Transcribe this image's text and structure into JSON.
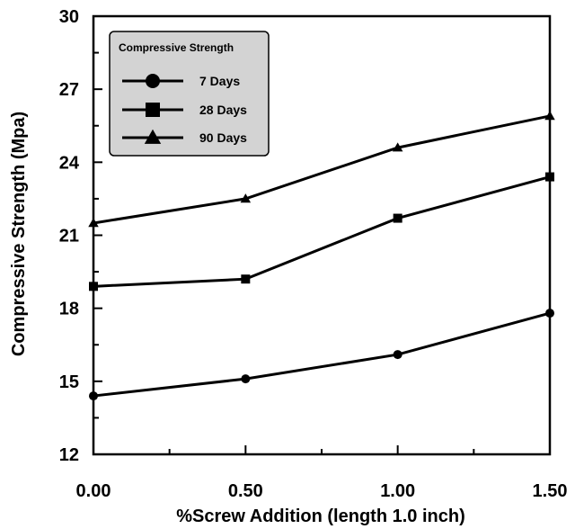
{
  "chart_data": {
    "type": "line",
    "xlabel": "%Screw Addition (length 1.0 inch)",
    "ylabel": "Compressive Strength (Mpa)",
    "xlim": [
      0,
      1.5
    ],
    "ylim": [
      12,
      30
    ],
    "x_ticks": [
      "0.00",
      "0.50",
      "1.00",
      "1.50"
    ],
    "y_ticks": [
      "12",
      "15",
      "18",
      "21",
      "24",
      "27",
      "30"
    ],
    "x": [
      0,
      0.5,
      1.0,
      1.5
    ],
    "series": [
      {
        "name": "7 Days",
        "marker": "circle",
        "values": [
          14.4,
          15.1,
          16.1,
          17.8
        ]
      },
      {
        "name": "28 Days",
        "marker": "square",
        "values": [
          18.9,
          19.2,
          21.7,
          23.4
        ]
      },
      {
        "name": "90 Days",
        "marker": "triangle",
        "values": [
          21.5,
          22.5,
          24.6,
          25.9
        ]
      }
    ],
    "legend": {
      "title": "Compressive Strength",
      "placement": "top-left"
    },
    "grid": false,
    "line_color": "#000000",
    "legend_background": "#d3d3d3"
  }
}
